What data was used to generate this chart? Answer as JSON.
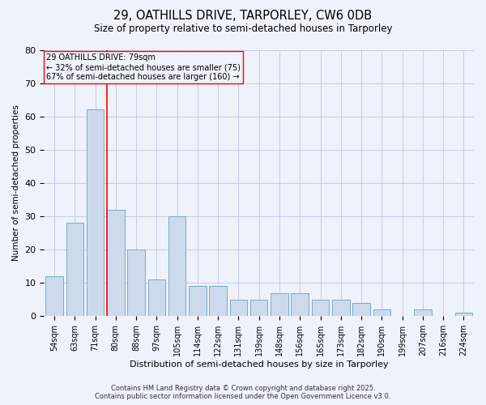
{
  "title1": "29, OATHILLS DRIVE, TARPORLEY, CW6 0DB",
  "title2": "Size of property relative to semi-detached houses in Tarporley",
  "xlabel": "Distribution of semi-detached houses by size in Tarporley",
  "ylabel": "Number of semi-detached properties",
  "categories": [
    "54sqm",
    "63sqm",
    "71sqm",
    "80sqm",
    "88sqm",
    "97sqm",
    "105sqm",
    "114sqm",
    "122sqm",
    "131sqm",
    "139sqm",
    "148sqm",
    "156sqm",
    "165sqm",
    "173sqm",
    "182sqm",
    "190sqm",
    "199sqm",
    "207sqm",
    "216sqm",
    "224sqm"
  ],
  "values": [
    12,
    28,
    62,
    32,
    20,
    11,
    30,
    9,
    9,
    5,
    5,
    7,
    7,
    5,
    5,
    4,
    2,
    0,
    2,
    0,
    1
  ],
  "bar_color": "#ccdaeb",
  "bar_edge_color": "#7aaac8",
  "red_line_x": 2.575,
  "annotation_title": "29 OATHILLS DRIVE: 79sqm",
  "annotation_line1": "← 32% of semi-detached houses are smaller (75)",
  "annotation_line2": "67% of semi-detached houses are larger (160) →",
  "ylim": [
    0,
    80
  ],
  "yticks": [
    0,
    10,
    20,
    30,
    40,
    50,
    60,
    70,
    80
  ],
  "footer1": "Contains HM Land Registry data © Crown copyright and database right 2025.",
  "footer2": "Contains public sector information licensed under the Open Government Licence v3.0.",
  "bg_color": "#eef2fb",
  "grid_color": "#c5cde8"
}
